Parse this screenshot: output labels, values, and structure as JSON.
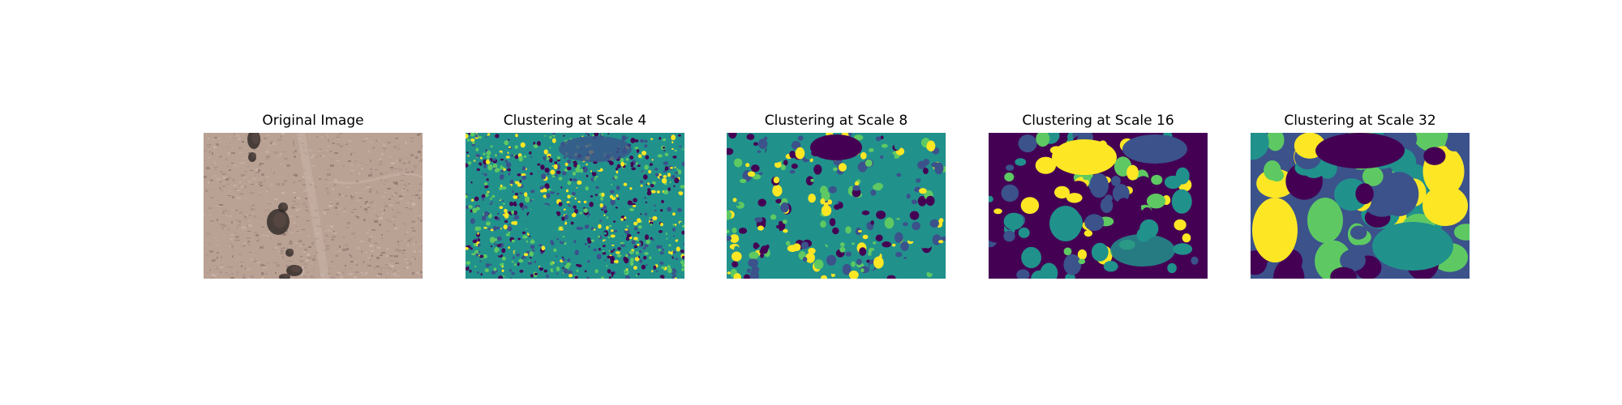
{
  "figure": {
    "panels": [
      {
        "title": "Original Image",
        "kind": "photo",
        "palette": [
          "#b9a194",
          "#a58e82",
          "#8c766c",
          "#cbb6aa",
          "#5b4a45",
          "#2b2422"
        ]
      },
      {
        "title": "Clustering at Scale 4",
        "kind": "clusters",
        "palette": [
          "#440154",
          "#3b528b",
          "#21918c",
          "#5ec962",
          "#fde725"
        ]
      },
      {
        "title": "Clustering at Scale 8",
        "kind": "clusters",
        "palette": [
          "#440154",
          "#3b528b",
          "#21918c",
          "#5ec962",
          "#fde725"
        ]
      },
      {
        "title": "Clustering at Scale 16",
        "kind": "clusters",
        "palette": [
          "#440154",
          "#3b528b",
          "#21918c",
          "#5ec962",
          "#fde725"
        ]
      },
      {
        "title": "Clustering at Scale 32",
        "kind": "clusters",
        "palette": [
          "#440154",
          "#3b528b",
          "#21918c",
          "#5ec962",
          "#fde725"
        ]
      }
    ]
  }
}
